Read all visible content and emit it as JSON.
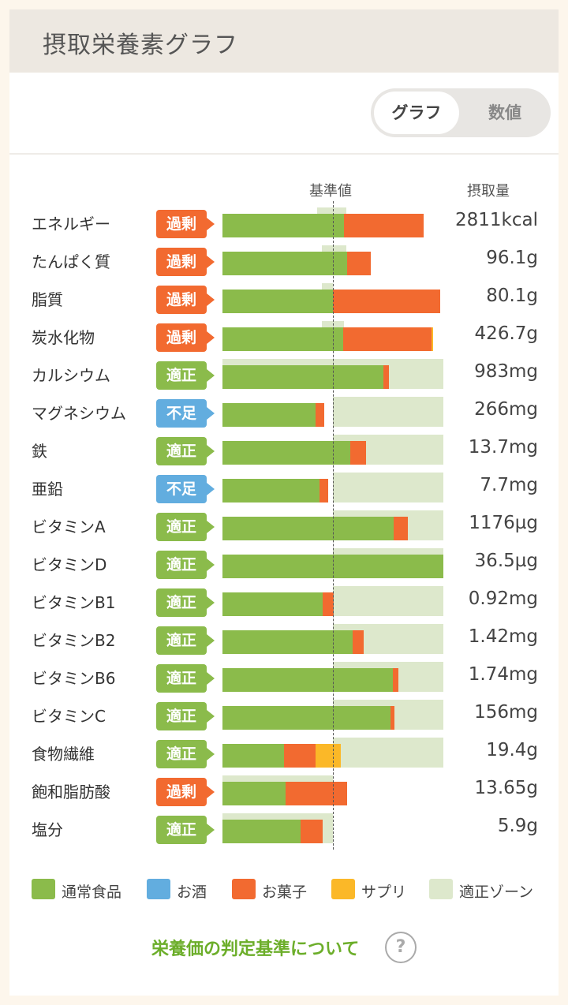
{
  "header": {
    "title": "摂取栄養素グラフ"
  },
  "toggle": {
    "graph": "グラフ",
    "numeric": "数値"
  },
  "columns": {
    "reference": "基準値",
    "intake": "摂取量"
  },
  "colors": {
    "normal_food": "#8bbb4b",
    "alcohol": "#62addf",
    "snack": "#f26a30",
    "supplement": "#fbb828",
    "proper_zone": "#dde8cc",
    "badge_excess": "#f26a30",
    "badge_proper": "#8bbb4b",
    "badge_short": "#62addf"
  },
  "chart_data": {
    "type": "bar",
    "stacked": true,
    "reference_line_fraction": 0.5,
    "series_names": [
      "通常食品",
      "お酒",
      "お菓子",
      "サプリ"
    ],
    "rows": [
      {
        "name": "エネルギー",
        "status": "過剰",
        "status_key": "excess",
        "value": "2811kcal",
        "normal": 0.55,
        "snack": 0.36,
        "supplement": 0,
        "zone": [
          0.43,
          0.56
        ]
      },
      {
        "name": "たんぱく質",
        "status": "過剰",
        "status_key": "excess",
        "value": "96.1g",
        "normal": 0.565,
        "snack": 0.105,
        "supplement": 0,
        "zone": [
          0.45,
          0.56
        ]
      },
      {
        "name": "脂質",
        "status": "過剰",
        "status_key": "excess",
        "value": "80.1g",
        "normal": 0.5,
        "snack": 0.485,
        "supplement": 0,
        "zone": [
          0.45,
          0.5
        ]
      },
      {
        "name": "炭水化物",
        "status": "過剰",
        "status_key": "excess",
        "value": "426.7g",
        "normal": 0.545,
        "snack": 0.4,
        "supplement": 0.01,
        "zone": [
          0.45,
          0.55
        ]
      },
      {
        "name": "カルシウム",
        "status": "適正",
        "status_key": "proper",
        "value": "983mg",
        "normal": 0.73,
        "snack": 0.025,
        "supplement": 0,
        "zone": [
          0,
          1
        ]
      },
      {
        "name": "マグネシウム",
        "status": "不足",
        "status_key": "short",
        "value": "266mg",
        "normal": 0.42,
        "snack": 0.04,
        "supplement": 0,
        "zone": [
          0.5,
          1
        ]
      },
      {
        "name": "鉄",
        "status": "適正",
        "status_key": "proper",
        "value": "13.7mg",
        "normal": 0.58,
        "snack": 0.07,
        "supplement": 0,
        "zone": [
          0.5,
          1
        ]
      },
      {
        "name": "亜鉛",
        "status": "不足",
        "status_key": "short",
        "value": "7.7mg",
        "normal": 0.44,
        "snack": 0.04,
        "supplement": 0,
        "zone": [
          0.5,
          1
        ]
      },
      {
        "name": "ビタミンA",
        "status": "適正",
        "status_key": "proper",
        "value": "1176µg",
        "normal": 0.775,
        "snack": 0.065,
        "supplement": 0,
        "zone": [
          0.5,
          1
        ]
      },
      {
        "name": "ビタミンD",
        "status": "適正",
        "status_key": "proper",
        "value": "36.5µg",
        "normal": 1.0,
        "snack": 0,
        "supplement": 0,
        "zone": [
          0.5,
          1
        ]
      },
      {
        "name": "ビタミンB1",
        "status": "適正",
        "status_key": "proper",
        "value": "0.92mg",
        "normal": 0.455,
        "snack": 0.05,
        "supplement": 0,
        "zone": [
          0.5,
          1
        ]
      },
      {
        "name": "ビタミンB2",
        "status": "適正",
        "status_key": "proper",
        "value": "1.42mg",
        "normal": 0.59,
        "snack": 0.05,
        "supplement": 0,
        "zone": [
          0.5,
          1
        ]
      },
      {
        "name": "ビタミンB6",
        "status": "適正",
        "status_key": "proper",
        "value": "1.74mg",
        "normal": 0.77,
        "snack": 0.025,
        "supplement": 0,
        "zone": [
          0.5,
          1
        ]
      },
      {
        "name": "ビタミンC",
        "status": "適正",
        "status_key": "proper",
        "value": "156mg",
        "normal": 0.76,
        "snack": 0.02,
        "supplement": 0,
        "zone": [
          0.5,
          1
        ]
      },
      {
        "name": "食物繊維",
        "status": "適正",
        "status_key": "proper",
        "value": "19.4g",
        "normal": 0.28,
        "snack": 0.14,
        "supplement": 0.115,
        "zone": [
          0.5,
          1
        ]
      },
      {
        "name": "飽和脂肪酸",
        "status": "過剰",
        "status_key": "excess",
        "value": "13.65g",
        "normal": 0.285,
        "snack": 0.28,
        "supplement": 0,
        "zone": [
          0,
          0.5
        ]
      },
      {
        "name": "塩分",
        "status": "適正",
        "status_key": "proper",
        "value": "5.9g",
        "normal": 0.355,
        "snack": 0.1,
        "supplement": 0,
        "zone": [
          0,
          0.5
        ]
      }
    ]
  },
  "legend": [
    {
      "label": "通常食品",
      "color": "#8bbb4b"
    },
    {
      "label": "お酒",
      "color": "#62addf"
    },
    {
      "label": "お菓子",
      "color": "#f26a30"
    },
    {
      "label": "サプリ",
      "color": "#fbb828"
    },
    {
      "label": "適正ゾーン",
      "color": "#dde8cc"
    }
  ],
  "footer": {
    "link": "栄養価の判定基準について",
    "help": "?"
  }
}
